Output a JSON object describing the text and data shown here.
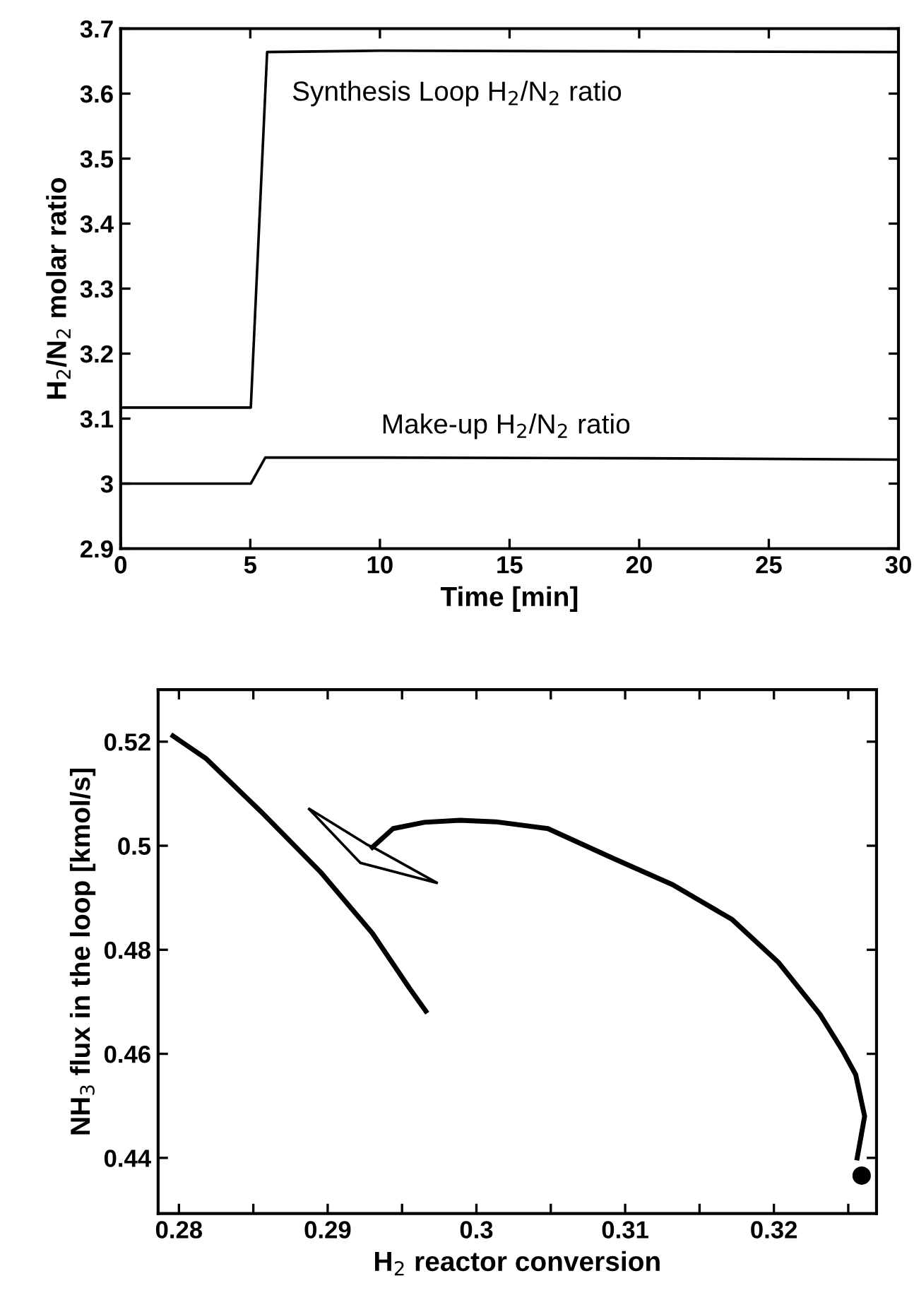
{
  "chart_data": [
    {
      "type": "line",
      "xlabel": "Time [min]",
      "ylabel": "H$_{2}$/N$_{2}$ molar ratio",
      "xlim": [
        0,
        30
      ],
      "ylim": [
        2.9,
        3.7
      ],
      "xticks": [
        0,
        5,
        10,
        15,
        20,
        25,
        30
      ],
      "yticks": [
        2.9,
        3,
        3.1,
        3.2,
        3.3,
        3.4,
        3.5,
        3.6,
        3.7
      ],
      "grid": false,
      "legend": false,
      "marker": "none",
      "line_style": "solid",
      "series": [
        {
          "color": "#000000",
          "x": [
            0,
            5.02,
            5.65,
            10,
            20,
            30
          ],
          "values": [
            3.117,
            3.117,
            3.664,
            3.666,
            3.665,
            3.664
          ]
        },
        {
          "color": "#000000",
          "x": [
            0,
            5.02,
            5.58,
            10,
            20,
            30
          ],
          "values": [
            3.0,
            3.0,
            3.04,
            3.04,
            3.039,
            3.037
          ]
        }
      ],
      "annotations": [
        "Synthesis Loop H$_{2}$/N$_{2}$ ratio",
        "Make-up H$_{2}$/N$_{2}$ ratio"
      ]
    },
    {
      "type": "line",
      "xlabel": "H$_{2}$ reactor conversion",
      "ylabel": "NH$_{3}$ flux in the loop [kmol/s]",
      "xlim": [
        0.2786,
        0.3269
      ],
      "ylim": [
        0.4293,
        0.53
      ],
      "xticks": [
        0.28,
        {
          "value": 0.285,
          "label": null
        },
        0.29,
        {
          "value": 0.295,
          "label": null
        },
        0.3,
        {
          "value": 0.305,
          "label": null
        },
        0.31,
        {
          "value": 0.315,
          "label": null
        },
        0.32,
        {
          "value": 0.325,
          "label": null
        }
      ],
      "yticks": [
        0.44,
        0.46,
        0.48,
        0.5,
        0.52
      ],
      "grid": false,
      "legend": false,
      "line_style": "solid",
      "series": [
        {
          "color": "#000000",
          "marker": "none",
          "x": [
            0.3256,
            0.3261,
            0.3255,
            0.3246,
            0.3231,
            0.3203,
            0.3172,
            0.3132,
            0.3091,
            0.3048,
            0.3013,
            0.2989,
            0.2965,
            0.2944,
            0.293
          ],
          "values": [
            0.44,
            0.448,
            0.456,
            0.4607,
            0.4676,
            0.4776,
            0.4858,
            0.4925,
            0.4977,
            0.5033,
            0.5046,
            0.5049,
            0.5045,
            0.5033,
            0.4997
          ]
        },
        {
          "color": "#000000",
          "marker": "none",
          "x": [
            0.2796,
            0.2818,
            0.2855,
            0.2895,
            0.293,
            0.2955,
            0.2966
          ],
          "values": [
            0.5211,
            0.5168,
            0.5066,
            0.495,
            0.4832,
            0.4726,
            0.4682
          ]
        },
        {
          "type": "scatter",
          "color": "#000000",
          "marker": "circle",
          "x": [
            0.3259
          ],
          "values": [
            0.4366
          ]
        }
      ]
    }
  ]
}
